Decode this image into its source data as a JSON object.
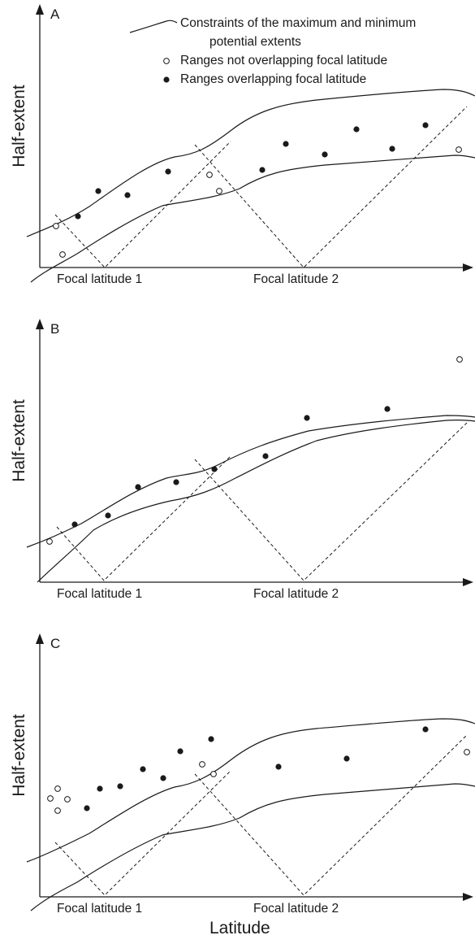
{
  "panels": [
    {
      "letter": "A",
      "ylabel": "Half-extent",
      "focal_labels": [
        "Focal latitude 1",
        "Focal latitude 2"
      ],
      "open_points": [
        [
          69,
          278
        ],
        [
          77,
          313
        ],
        [
          258,
          215
        ],
        [
          270,
          235
        ],
        [
          565,
          184
        ]
      ],
      "filled_points": [
        [
          96,
          266
        ],
        [
          121,
          235
        ],
        [
          157,
          240
        ],
        [
          207,
          211
        ],
        [
          323,
          209
        ],
        [
          352,
          177
        ],
        [
          400,
          190
        ],
        [
          439,
          159
        ],
        [
          483,
          183
        ],
        [
          524,
          154
        ]
      ]
    },
    {
      "letter": "B",
      "ylabel": "Half-extent",
      "focal_labels": [
        "Focal latitude 1",
        "Focal latitude 2"
      ],
      "open_points": [
        [
          61,
          666
        ],
        [
          566,
          442
        ]
      ],
      "filled_points": [
        [
          92,
          645
        ],
        [
          133,
          634
        ],
        [
          170,
          599
        ],
        [
          217,
          593
        ],
        [
          264,
          577
        ],
        [
          327,
          561
        ],
        [
          378,
          514
        ],
        [
          477,
          503
        ]
      ]
    },
    {
      "letter": "C",
      "ylabel": "Half-extent",
      "focal_labels": [
        "Focal latitude 1",
        "Focal latitude 2"
      ],
      "open_points": [
        [
          62,
          982
        ],
        [
          71,
          970
        ],
        [
          83,
          983
        ],
        [
          71,
          997
        ],
        [
          249,
          940
        ],
        [
          263,
          952
        ],
        [
          575,
          925
        ]
      ],
      "filled_points": [
        [
          107,
          994
        ],
        [
          123,
          970
        ],
        [
          148,
          967
        ],
        [
          176,
          946
        ],
        [
          201,
          957
        ],
        [
          222,
          924
        ],
        [
          260,
          909
        ],
        [
          343,
          943
        ],
        [
          427,
          933
        ],
        [
          524,
          897
        ]
      ]
    }
  ],
  "legend": {
    "line_label_1": "Constraints of the maximum and minimum",
    "line_label_2": "potential extents",
    "open_label": "Ranges not overlapping focal latitude",
    "filled_label": "Ranges overlapping focal latitude"
  },
  "xlabel": "Latitude"
}
